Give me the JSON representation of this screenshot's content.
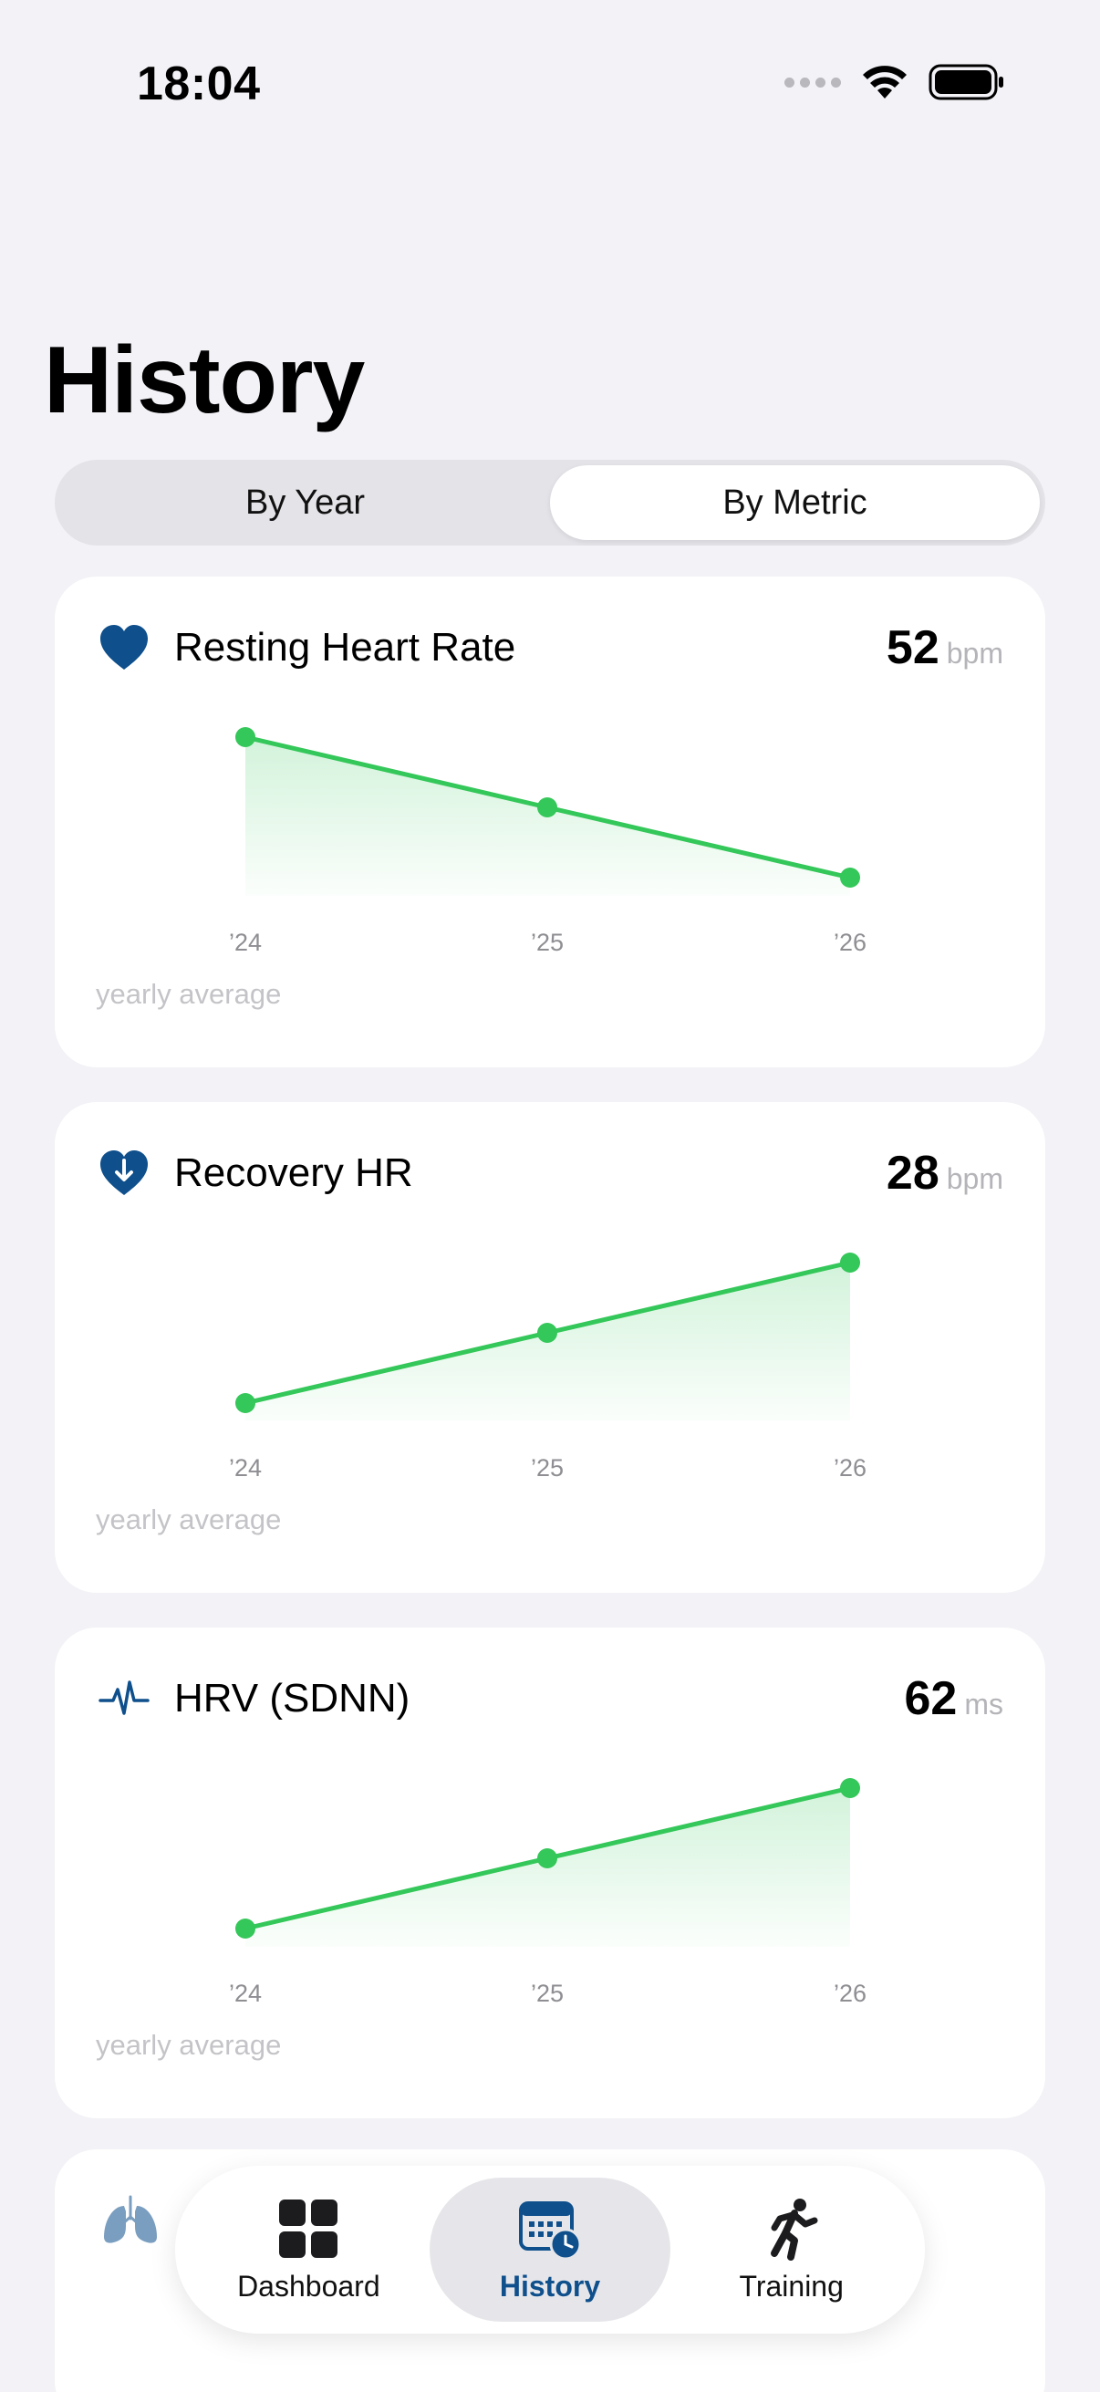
{
  "status_bar": {
    "time": "18:04"
  },
  "title": "History",
  "segmented": {
    "options": [
      "By Year",
      "By Metric"
    ],
    "selected": "By Metric"
  },
  "colors": {
    "accent": "#0e4f8c",
    "series": "#34c759",
    "background": "#f2f2f7"
  },
  "cards": [
    {
      "title": "Resting Heart Rate",
      "value": "52",
      "unit": "bpm",
      "icon": "heart-icon",
      "footnote": "yearly average",
      "chart_data": {
        "type": "line",
        "x": [
          "’24",
          "’25",
          "’26"
        ],
        "y": [
          58,
          55,
          52
        ]
      }
    },
    {
      "title": "Recovery HR",
      "value": "28",
      "unit": "bpm",
      "icon": "heart-arrow-down-icon",
      "footnote": "yearly average",
      "chart_data": {
        "type": "line",
        "x": [
          "’24",
          "’25",
          "’26"
        ],
        "y": [
          22,
          25,
          28
        ]
      }
    },
    {
      "title": "HRV (SDNN)",
      "value": "62",
      "unit": "ms",
      "icon": "waveform-icon",
      "footnote": "yearly average",
      "chart_data": {
        "type": "line",
        "x": [
          "’24",
          "’25",
          "’26"
        ],
        "y": [
          50,
          56,
          62
        ]
      }
    }
  ],
  "tab_bar": {
    "items": [
      {
        "label": "Dashboard",
        "icon": "grid-icon"
      },
      {
        "label": "History",
        "icon": "calendar-clock-icon"
      },
      {
        "label": "Training",
        "icon": "runner-icon"
      }
    ],
    "selected": "History"
  }
}
